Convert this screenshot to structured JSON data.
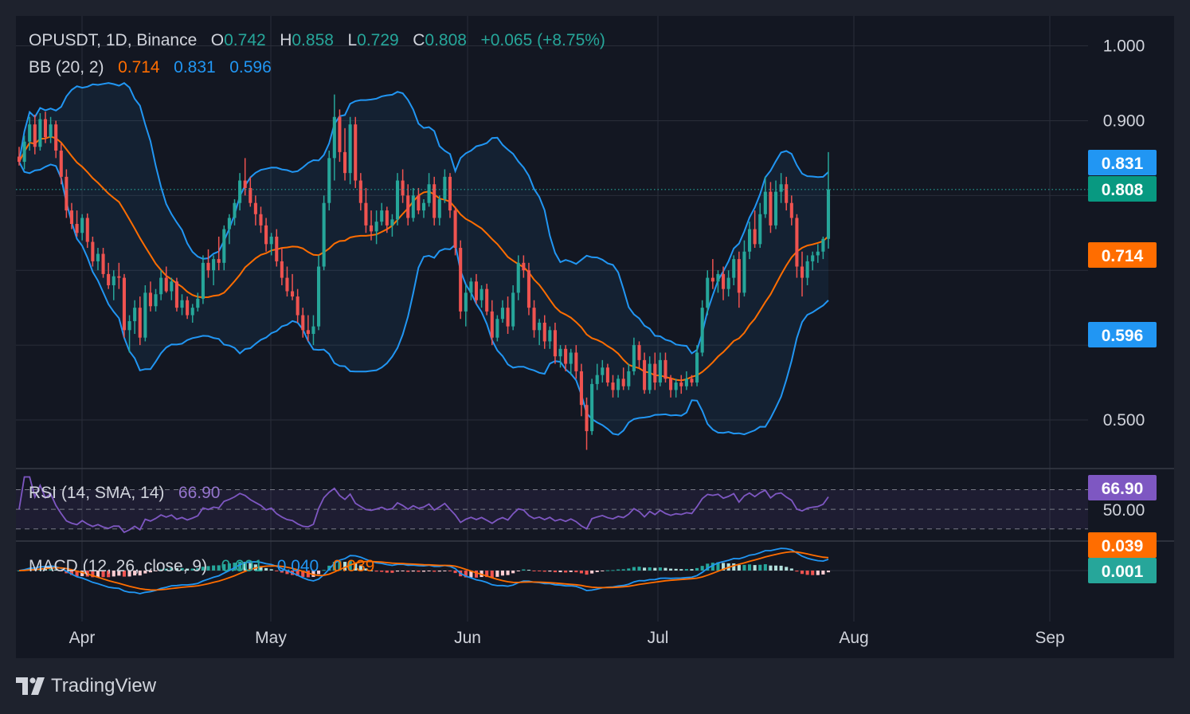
{
  "legend": {
    "symbol": "OPUSDT, 1D, Binance",
    "o_label": "O",
    "o": "0.742",
    "h_label": "H",
    "h": "0.858",
    "l_label": "L",
    "l": "0.729",
    "c_label": "C",
    "c": "0.808",
    "change": "+0.065 (+8.75%)",
    "bb_label": "BB (20, 2)",
    "bb_basis": "0.714",
    "bb_upper": "0.831",
    "bb_lower": "0.596",
    "rsi_label": "RSI (14, SMA, 14)",
    "rsi_value": "66.90",
    "macd_label": "MACD (12, 26, close, 9)",
    "macd_hist": "0.001",
    "macd_line": "0.040",
    "macd_signal": "0.039"
  },
  "brand": "TradingView",
  "colors": {
    "up": "#26a69a",
    "down": "#ef5350",
    "background": "#131722",
    "frame": "#1e222d",
    "grid": "#2a2e39",
    "bb_basis": "#ff6d00",
    "bb_band": "#2196f3",
    "rsi": "#7e57c2",
    "price_label": "#089981"
  },
  "chart_data": {
    "type": "candlestick",
    "price_axis": {
      "ticks": [
        "1.000",
        "0.900",
        "0.500"
      ],
      "ylim": [
        0.435,
        1.04
      ]
    },
    "x_axis": {
      "ticks": [
        "Apr",
        "May",
        "Jun",
        "Jul",
        "Aug",
        "Sep"
      ]
    },
    "price_labels": [
      {
        "name": "bb-upper",
        "value": "0.831",
        "color": "#2196f3"
      },
      {
        "name": "close",
        "value": "0.808",
        "color": "#089981"
      },
      {
        "name": "bb-basis",
        "value": "0.714",
        "color": "#ff6d00"
      },
      {
        "name": "bb-lower",
        "value": "0.596",
        "color": "#2196f3"
      }
    ],
    "rsi_axis": {
      "ticks": [
        "50.00"
      ],
      "label": "66.90",
      "bands": [
        70,
        50,
        30
      ]
    },
    "macd_axis": {
      "labels": [
        {
          "name": "macd-signal",
          "value": "0.039",
          "color": "#ff6d00"
        },
        {
          "name": "macd-hist",
          "value": "0.001",
          "color": "#26a69a"
        }
      ]
    },
    "candles": [
      [
        0.852,
        0.865,
        0.84,
        0.845
      ],
      [
        0.845,
        0.88,
        0.835,
        0.872
      ],
      [
        0.872,
        0.905,
        0.86,
        0.895
      ],
      [
        0.895,
        0.908,
        0.855,
        0.865
      ],
      [
        0.865,
        0.91,
        0.86,
        0.902
      ],
      [
        0.902,
        0.912,
        0.87,
        0.878
      ],
      [
        0.878,
        0.905,
        0.87,
        0.895
      ],
      [
        0.895,
        0.9,
        0.85,
        0.86
      ],
      [
        0.86,
        0.87,
        0.815,
        0.825
      ],
      [
        0.825,
        0.835,
        0.77,
        0.78
      ],
      [
        0.78,
        0.79,
        0.755,
        0.762
      ],
      [
        0.762,
        0.78,
        0.745,
        0.75
      ],
      [
        0.75,
        0.775,
        0.74,
        0.77
      ],
      [
        0.77,
        0.776,
        0.73,
        0.738
      ],
      [
        0.738,
        0.745,
        0.705,
        0.712
      ],
      [
        0.712,
        0.73,
        0.7,
        0.722
      ],
      [
        0.722,
        0.73,
        0.69,
        0.695
      ],
      [
        0.695,
        0.71,
        0.675,
        0.68
      ],
      [
        0.68,
        0.7,
        0.66,
        0.692
      ],
      [
        0.692,
        0.71,
        0.675,
        0.69
      ],
      [
        0.69,
        0.695,
        0.61,
        0.62
      ],
      [
        0.62,
        0.64,
        0.59,
        0.632
      ],
      [
        0.632,
        0.66,
        0.615,
        0.65
      ],
      [
        0.65,
        0.665,
        0.6,
        0.61
      ],
      [
        0.61,
        0.68,
        0.605,
        0.67
      ],
      [
        0.67,
        0.685,
        0.645,
        0.652
      ],
      [
        0.652,
        0.675,
        0.645,
        0.668
      ],
      [
        0.668,
        0.7,
        0.66,
        0.69
      ],
      [
        0.69,
        0.705,
        0.67,
        0.672
      ],
      [
        0.672,
        0.69,
        0.66,
        0.685
      ],
      [
        0.685,
        0.69,
        0.645,
        0.65
      ],
      [
        0.65,
        0.668,
        0.64,
        0.66
      ],
      [
        0.66,
        0.665,
        0.635,
        0.64
      ],
      [
        0.64,
        0.655,
        0.63,
        0.65
      ],
      [
        0.65,
        0.67,
        0.645,
        0.662
      ],
      [
        0.662,
        0.72,
        0.655,
        0.71
      ],
      [
        0.71,
        0.728,
        0.69,
        0.7
      ],
      [
        0.7,
        0.72,
        0.68,
        0.715
      ],
      [
        0.715,
        0.745,
        0.7,
        0.71
      ],
      [
        0.71,
        0.76,
        0.7,
        0.755
      ],
      [
        0.755,
        0.775,
        0.735,
        0.77
      ],
      [
        0.77,
        0.795,
        0.76,
        0.79
      ],
      [
        0.79,
        0.83,
        0.78,
        0.82
      ],
      [
        0.82,
        0.85,
        0.8,
        0.81
      ],
      [
        0.81,
        0.825,
        0.785,
        0.79
      ],
      [
        0.79,
        0.8,
        0.76,
        0.775
      ],
      [
        0.775,
        0.785,
        0.75,
        0.76
      ],
      [
        0.76,
        0.77,
        0.725,
        0.735
      ],
      [
        0.735,
        0.75,
        0.72,
        0.745
      ],
      [
        0.745,
        0.755,
        0.705,
        0.712
      ],
      [
        0.712,
        0.73,
        0.68,
        0.69
      ],
      [
        0.69,
        0.705,
        0.665,
        0.672
      ],
      [
        0.672,
        0.695,
        0.66,
        0.665
      ],
      [
        0.665,
        0.675,
        0.63,
        0.64
      ],
      [
        0.64,
        0.65,
        0.61,
        0.62
      ],
      [
        0.62,
        0.64,
        0.605,
        0.615
      ],
      [
        0.615,
        0.64,
        0.6,
        0.625
      ],
      [
        0.625,
        0.72,
        0.62,
        0.705
      ],
      [
        0.705,
        0.8,
        0.7,
        0.79
      ],
      [
        0.79,
        0.86,
        0.78,
        0.85
      ],
      [
        0.85,
        0.935,
        0.82,
        0.905
      ],
      [
        0.905,
        0.915,
        0.845,
        0.858
      ],
      [
        0.858,
        0.89,
        0.82,
        0.83
      ],
      [
        0.83,
        0.905,
        0.815,
        0.895
      ],
      [
        0.895,
        0.905,
        0.81,
        0.82
      ],
      [
        0.82,
        0.83,
        0.78,
        0.79
      ],
      [
        0.79,
        0.81,
        0.75,
        0.76
      ],
      [
        0.76,
        0.78,
        0.74,
        0.752
      ],
      [
        0.752,
        0.78,
        0.735,
        0.765
      ],
      [
        0.765,
        0.79,
        0.76,
        0.78
      ],
      [
        0.78,
        0.785,
        0.75,
        0.76
      ],
      [
        0.76,
        0.775,
        0.745,
        0.768
      ],
      [
        0.768,
        0.83,
        0.76,
        0.82
      ],
      [
        0.82,
        0.835,
        0.79,
        0.8
      ],
      [
        0.8,
        0.815,
        0.76,
        0.77
      ],
      [
        0.77,
        0.81,
        0.765,
        0.8
      ],
      [
        0.8,
        0.81,
        0.775,
        0.78
      ],
      [
        0.78,
        0.795,
        0.77,
        0.79
      ],
      [
        0.79,
        0.83,
        0.785,
        0.815
      ],
      [
        0.815,
        0.825,
        0.76,
        0.77
      ],
      [
        0.77,
        0.8,
        0.76,
        0.795
      ],
      [
        0.795,
        0.835,
        0.79,
        0.825
      ],
      [
        0.825,
        0.83,
        0.77,
        0.78
      ],
      [
        0.78,
        0.785,
        0.72,
        0.73
      ],
      [
        0.73,
        0.74,
        0.635,
        0.645
      ],
      [
        0.645,
        0.68,
        0.625,
        0.67
      ],
      [
        0.67,
        0.69,
        0.66,
        0.685
      ],
      [
        0.685,
        0.695,
        0.655,
        0.66
      ],
      [
        0.66,
        0.68,
        0.65,
        0.675
      ],
      [
        0.675,
        0.682,
        0.64,
        0.645
      ],
      [
        0.645,
        0.66,
        0.6,
        0.61
      ],
      [
        0.61,
        0.64,
        0.605,
        0.635
      ],
      [
        0.635,
        0.66,
        0.63,
        0.65
      ],
      [
        0.65,
        0.665,
        0.615,
        0.625
      ],
      [
        0.625,
        0.68,
        0.62,
        0.67
      ],
      [
        0.67,
        0.72,
        0.66,
        0.71
      ],
      [
        0.71,
        0.72,
        0.69,
        0.7
      ],
      [
        0.7,
        0.71,
        0.64,
        0.65
      ],
      [
        0.65,
        0.66,
        0.61,
        0.62
      ],
      [
        0.62,
        0.635,
        0.6,
        0.63
      ],
      [
        0.63,
        0.64,
        0.595,
        0.605
      ],
      [
        0.605,
        0.625,
        0.595,
        0.62
      ],
      [
        0.62,
        0.63,
        0.575,
        0.585
      ],
      [
        0.585,
        0.6,
        0.57,
        0.595
      ],
      [
        0.595,
        0.6,
        0.565,
        0.575
      ],
      [
        0.575,
        0.595,
        0.56,
        0.59
      ],
      [
        0.59,
        0.6,
        0.555,
        0.565
      ],
      [
        0.565,
        0.575,
        0.505,
        0.52
      ],
      [
        0.52,
        0.53,
        0.46,
        0.485
      ],
      [
        0.485,
        0.555,
        0.48,
        0.548
      ],
      [
        0.548,
        0.575,
        0.54,
        0.56
      ],
      [
        0.56,
        0.58,
        0.55,
        0.57
      ],
      [
        0.57,
        0.575,
        0.545,
        0.55
      ],
      [
        0.55,
        0.56,
        0.53,
        0.54
      ],
      [
        0.54,
        0.56,
        0.53,
        0.555
      ],
      [
        0.555,
        0.57,
        0.54,
        0.545
      ],
      [
        0.545,
        0.575,
        0.54,
        0.565
      ],
      [
        0.565,
        0.61,
        0.56,
        0.6
      ],
      [
        0.6,
        0.605,
        0.57,
        0.58
      ],
      [
        0.58,
        0.59,
        0.535,
        0.54
      ],
      [
        0.54,
        0.585,
        0.535,
        0.575
      ],
      [
        0.575,
        0.59,
        0.54,
        0.55
      ],
      [
        0.55,
        0.59,
        0.545,
        0.58
      ],
      [
        0.58,
        0.59,
        0.55,
        0.555
      ],
      [
        0.555,
        0.56,
        0.53,
        0.54
      ],
      [
        0.54,
        0.555,
        0.53,
        0.55
      ],
      [
        0.55,
        0.56,
        0.535,
        0.545
      ],
      [
        0.545,
        0.565,
        0.54,
        0.555
      ],
      [
        0.555,
        0.56,
        0.545,
        0.55
      ],
      [
        0.55,
        0.6,
        0.545,
        0.59
      ],
      [
        0.59,
        0.66,
        0.585,
        0.65
      ],
      [
        0.65,
        0.7,
        0.64,
        0.69
      ],
      [
        0.69,
        0.715,
        0.675,
        0.685
      ],
      [
        0.685,
        0.7,
        0.67,
        0.695
      ],
      [
        0.695,
        0.705,
        0.66,
        0.675
      ],
      [
        0.675,
        0.7,
        0.665,
        0.69
      ],
      [
        0.69,
        0.72,
        0.68,
        0.715
      ],
      [
        0.715,
        0.725,
        0.65,
        0.67
      ],
      [
        0.67,
        0.74,
        0.665,
        0.725
      ],
      [
        0.725,
        0.765,
        0.715,
        0.755
      ],
      [
        0.755,
        0.78,
        0.73,
        0.735
      ],
      [
        0.735,
        0.79,
        0.73,
        0.775
      ],
      [
        0.775,
        0.825,
        0.77,
        0.805
      ],
      [
        0.805,
        0.818,
        0.75,
        0.76
      ],
      [
        0.76,
        0.82,
        0.755,
        0.805
      ],
      [
        0.805,
        0.83,
        0.79,
        0.815
      ],
      [
        0.815,
        0.825,
        0.78,
        0.79
      ],
      [
        0.79,
        0.8,
        0.76,
        0.77
      ],
      [
        0.77,
        0.775,
        0.69,
        0.705
      ],
      [
        0.705,
        0.725,
        0.665,
        0.69
      ],
      [
        0.69,
        0.72,
        0.68,
        0.712
      ],
      [
        0.712,
        0.725,
        0.7,
        0.72
      ],
      [
        0.72,
        0.735,
        0.71,
        0.725
      ],
      [
        0.725,
        0.745,
        0.715,
        0.742
      ],
      [
        0.742,
        0.858,
        0.729,
        0.808
      ]
    ]
  }
}
